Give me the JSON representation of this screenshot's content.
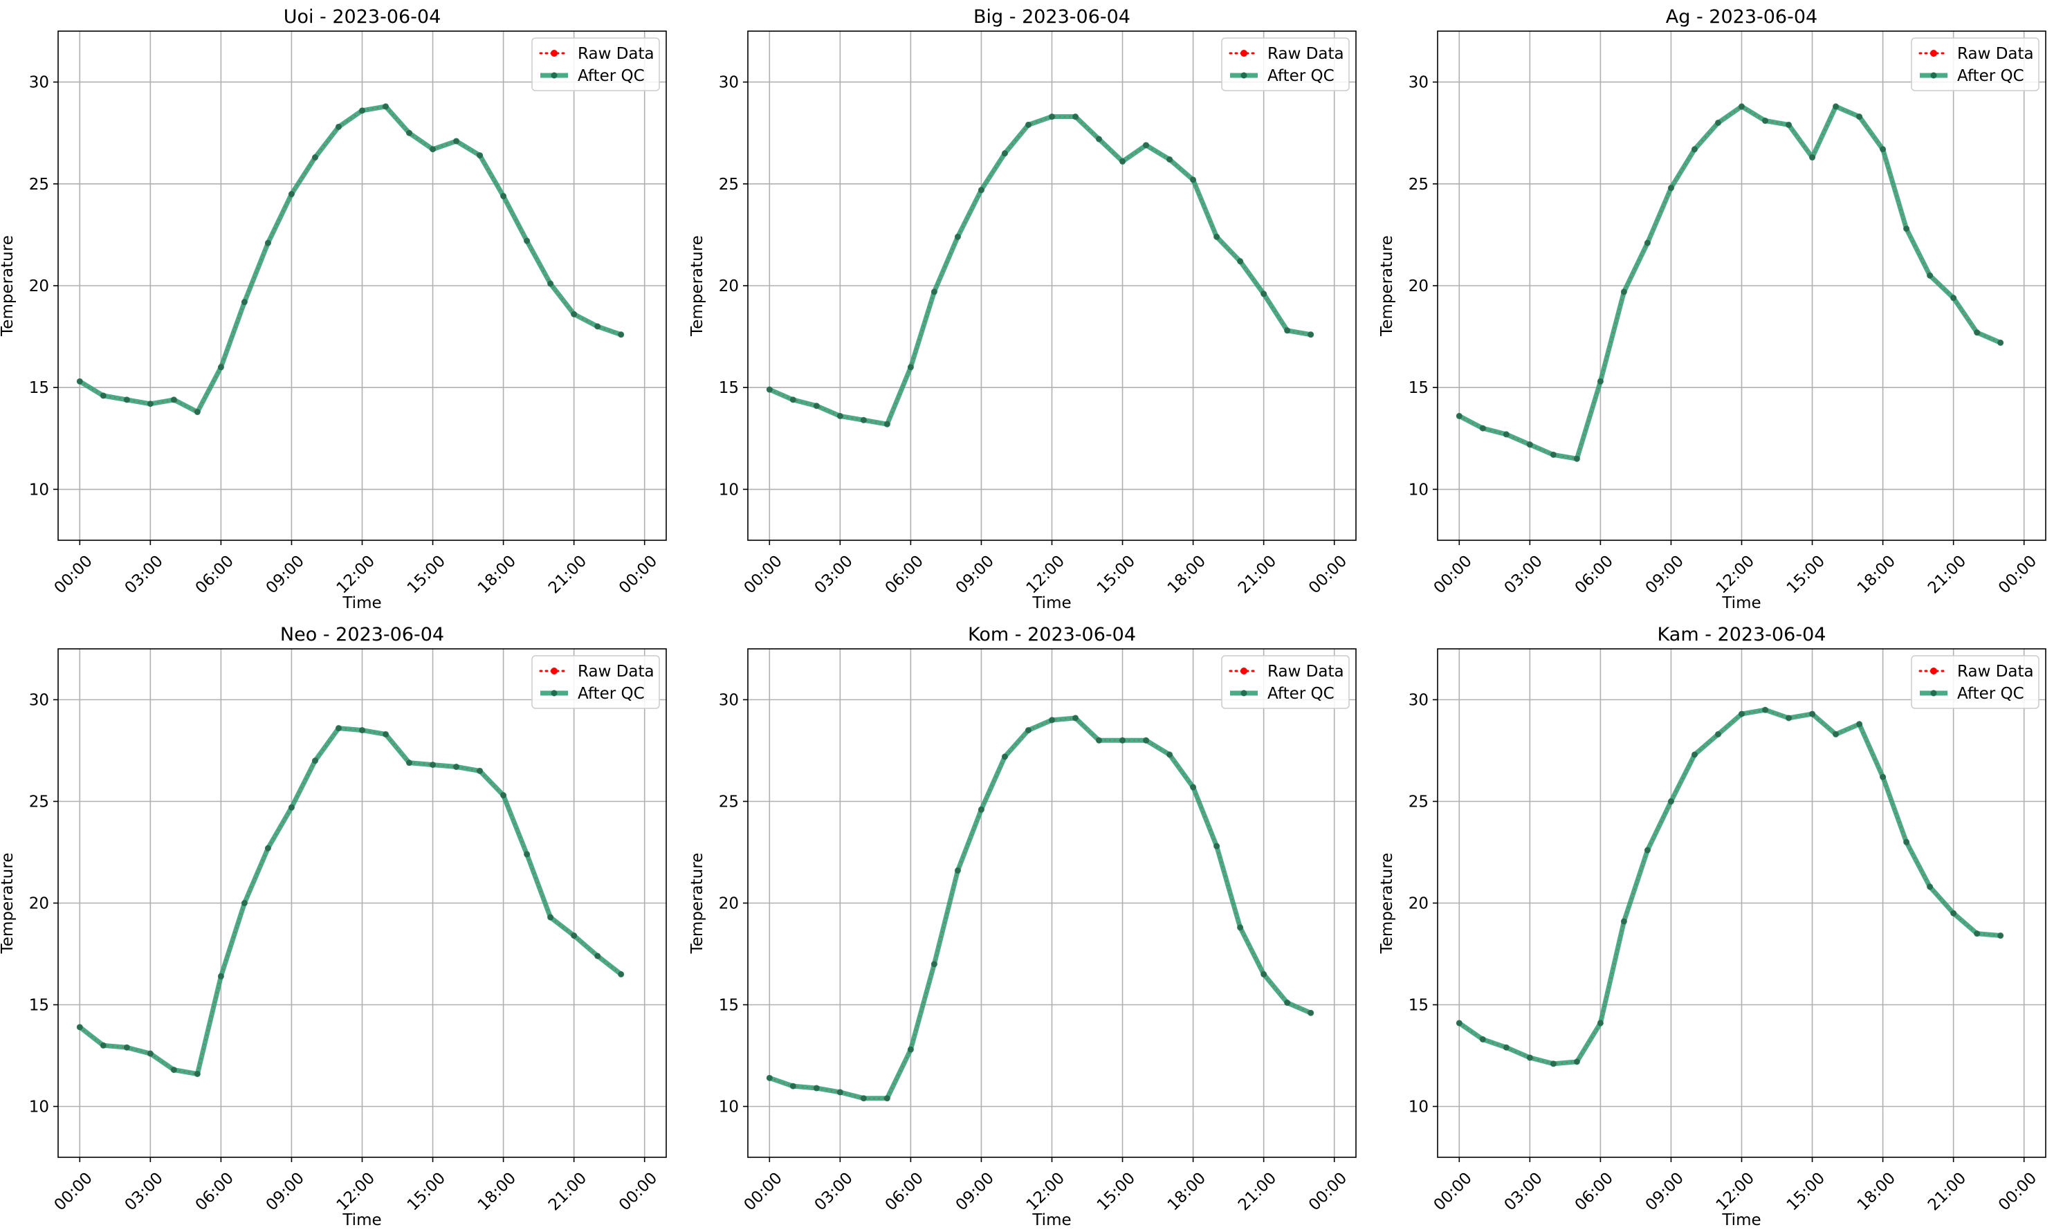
{
  "figure": {
    "legend_labels": {
      "raw": "Raw Data",
      "qc": "After QC"
    },
    "colors": {
      "raw": "#ff0000",
      "qc": "#2a9d72",
      "qc_marker": "#1e6e50",
      "grid": "#b0b0b0",
      "axes": "#000000"
    }
  },
  "chart_data": [
    {
      "type": "line",
      "title": "Uoi - 2023-06-04",
      "xlabel": "Time",
      "ylabel": "Temperature",
      "xlim": [
        -0.92,
        24.92
      ],
      "ylim": [
        7.5,
        32.5
      ],
      "x_ticks": [
        0,
        3,
        6,
        9,
        12,
        15,
        18,
        21,
        24
      ],
      "x_tick_labels": [
        "00:00",
        "03:00",
        "06:00",
        "09:00",
        "12:00",
        "15:00",
        "18:00",
        "21:00",
        "00:00"
      ],
      "y_ticks": [
        10,
        15,
        20,
        25,
        30
      ],
      "grid": true,
      "legend_position": "top-right",
      "x": [
        0,
        1,
        2,
        3,
        4,
        5,
        6,
        7,
        8,
        9,
        10,
        11,
        12,
        13,
        14,
        15,
        16,
        17,
        18,
        19,
        20,
        21,
        22,
        23
      ],
      "series": [
        {
          "name": "Raw Data",
          "values": [
            15.3,
            14.6,
            14.4,
            14.2,
            14.4,
            13.8,
            16.0,
            19.2,
            22.1,
            24.5,
            26.3,
            27.8,
            28.6,
            28.8,
            27.5,
            26.7,
            27.1,
            26.4,
            24.4,
            22.2,
            20.1,
            18.6,
            18.0,
            17.6
          ]
        },
        {
          "name": "After QC",
          "values": [
            15.3,
            14.6,
            14.4,
            14.2,
            14.4,
            13.8,
            16.0,
            19.2,
            22.1,
            24.5,
            26.3,
            27.8,
            28.6,
            28.8,
            27.5,
            26.7,
            27.1,
            26.4,
            24.4,
            22.2,
            20.1,
            18.6,
            18.0,
            17.6
          ]
        }
      ]
    },
    {
      "type": "line",
      "title": "Big - 2023-06-04",
      "xlabel": "Time",
      "ylabel": "Temperature",
      "xlim": [
        -0.92,
        24.92
      ],
      "ylim": [
        7.5,
        32.5
      ],
      "x_ticks": [
        0,
        3,
        6,
        9,
        12,
        15,
        18,
        21,
        24
      ],
      "x_tick_labels": [
        "00:00",
        "03:00",
        "06:00",
        "09:00",
        "12:00",
        "15:00",
        "18:00",
        "21:00",
        "00:00"
      ],
      "y_ticks": [
        10,
        15,
        20,
        25,
        30
      ],
      "grid": true,
      "legend_position": "top-right",
      "x": [
        0,
        1,
        2,
        3,
        4,
        5,
        6,
        7,
        8,
        9,
        10,
        11,
        12,
        13,
        14,
        15,
        16,
        17,
        18,
        19,
        20,
        21,
        22,
        23
      ],
      "series": [
        {
          "name": "Raw Data",
          "values": [
            14.9,
            14.4,
            14.1,
            13.6,
            13.4,
            13.2,
            16.0,
            19.7,
            22.4,
            24.7,
            26.5,
            27.9,
            28.3,
            28.3,
            27.2,
            26.1,
            26.9,
            26.2,
            25.2,
            22.4,
            21.2,
            19.6,
            17.8,
            17.6
          ]
        },
        {
          "name": "After QC",
          "values": [
            14.9,
            14.4,
            14.1,
            13.6,
            13.4,
            13.2,
            16.0,
            19.7,
            22.4,
            24.7,
            26.5,
            27.9,
            28.3,
            28.3,
            27.2,
            26.1,
            26.9,
            26.2,
            25.2,
            22.4,
            21.2,
            19.6,
            17.8,
            17.6
          ]
        }
      ]
    },
    {
      "type": "line",
      "title": "Ag - 2023-06-04",
      "xlabel": "Time",
      "ylabel": "Temperature",
      "xlim": [
        -0.92,
        24.92
      ],
      "ylim": [
        7.5,
        32.5
      ],
      "x_ticks": [
        0,
        3,
        6,
        9,
        12,
        15,
        18,
        21,
        24
      ],
      "x_tick_labels": [
        "00:00",
        "03:00",
        "06:00",
        "09:00",
        "12:00",
        "15:00",
        "18:00",
        "21:00",
        "00:00"
      ],
      "y_ticks": [
        10,
        15,
        20,
        25,
        30
      ],
      "grid": true,
      "legend_position": "top-right",
      "x": [
        0,
        1,
        2,
        3,
        4,
        5,
        6,
        7,
        8,
        9,
        10,
        11,
        12,
        13,
        14,
        15,
        16,
        17,
        18,
        19,
        20,
        21,
        22,
        23
      ],
      "series": [
        {
          "name": "Raw Data",
          "values": [
            13.6,
            13.0,
            12.7,
            12.2,
            11.7,
            11.5,
            15.3,
            19.7,
            22.1,
            24.8,
            26.7,
            28.0,
            28.8,
            28.1,
            27.9,
            26.3,
            28.8,
            28.3,
            26.7,
            22.8,
            20.5,
            19.4,
            17.7,
            17.2
          ]
        },
        {
          "name": "After QC",
          "values": [
            13.6,
            13.0,
            12.7,
            12.2,
            11.7,
            11.5,
            15.3,
            19.7,
            22.1,
            24.8,
            26.7,
            28.0,
            28.8,
            28.1,
            27.9,
            26.3,
            28.8,
            28.3,
            26.7,
            22.8,
            20.5,
            19.4,
            17.7,
            17.2
          ]
        }
      ]
    },
    {
      "type": "line",
      "title": "Neo - 2023-06-04",
      "xlabel": "Time",
      "ylabel": "Temperature",
      "xlim": [
        -0.92,
        24.92
      ],
      "ylim": [
        7.5,
        32.5
      ],
      "x_ticks": [
        0,
        3,
        6,
        9,
        12,
        15,
        18,
        21,
        24
      ],
      "x_tick_labels": [
        "00:00",
        "03:00",
        "06:00",
        "09:00",
        "12:00",
        "15:00",
        "18:00",
        "21:00",
        "00:00"
      ],
      "y_ticks": [
        10,
        15,
        20,
        25,
        30
      ],
      "grid": true,
      "legend_position": "top-right",
      "x": [
        0,
        1,
        2,
        3,
        4,
        5,
        6,
        7,
        8,
        9,
        10,
        11,
        12,
        13,
        14,
        15,
        16,
        17,
        18,
        19,
        20,
        21,
        22,
        23
      ],
      "series": [
        {
          "name": "Raw Data",
          "values": [
            13.9,
            13.0,
            12.9,
            12.6,
            11.8,
            11.6,
            16.4,
            20.0,
            22.7,
            24.7,
            27.0,
            28.6,
            28.5,
            28.3,
            26.9,
            26.8,
            26.7,
            26.5,
            25.3,
            22.4,
            19.3,
            18.4,
            17.4,
            16.5
          ]
        },
        {
          "name": "After QC",
          "values": [
            13.9,
            13.0,
            12.9,
            12.6,
            11.8,
            11.6,
            16.4,
            20.0,
            22.7,
            24.7,
            27.0,
            28.6,
            28.5,
            28.3,
            26.9,
            26.8,
            26.7,
            26.5,
            25.3,
            22.4,
            19.3,
            18.4,
            17.4,
            16.5
          ]
        }
      ]
    },
    {
      "type": "line",
      "title": "Kom - 2023-06-04",
      "xlabel": "Time",
      "ylabel": "Temperature",
      "xlim": [
        -0.92,
        24.92
      ],
      "ylim": [
        7.5,
        32.5
      ],
      "x_ticks": [
        0,
        3,
        6,
        9,
        12,
        15,
        18,
        21,
        24
      ],
      "x_tick_labels": [
        "00:00",
        "03:00",
        "06:00",
        "09:00",
        "12:00",
        "15:00",
        "18:00",
        "21:00",
        "00:00"
      ],
      "y_ticks": [
        10,
        15,
        20,
        25,
        30
      ],
      "grid": true,
      "legend_position": "top-right",
      "x": [
        0,
        1,
        2,
        3,
        4,
        5,
        6,
        7,
        8,
        9,
        10,
        11,
        12,
        13,
        14,
        15,
        16,
        17,
        18,
        19,
        20,
        21,
        22,
        23
      ],
      "series": [
        {
          "name": "Raw Data",
          "values": [
            11.4,
            11.0,
            10.9,
            10.7,
            10.4,
            10.4,
            12.8,
            17.0,
            21.6,
            24.6,
            27.2,
            28.5,
            29.0,
            29.1,
            28.0,
            28.0,
            28.0,
            27.3,
            25.7,
            22.8,
            18.8,
            16.5,
            15.1,
            14.6
          ]
        },
        {
          "name": "After QC",
          "values": [
            11.4,
            11.0,
            10.9,
            10.7,
            10.4,
            10.4,
            12.8,
            17.0,
            21.6,
            24.6,
            27.2,
            28.5,
            29.0,
            29.1,
            28.0,
            28.0,
            28.0,
            27.3,
            25.7,
            22.8,
            18.8,
            16.5,
            15.1,
            14.6
          ]
        }
      ]
    },
    {
      "type": "line",
      "title": "Kam - 2023-06-04",
      "xlabel": "Time",
      "ylabel": "Temperature",
      "xlim": [
        -0.92,
        24.92
      ],
      "ylim": [
        7.5,
        32.5
      ],
      "x_ticks": [
        0,
        3,
        6,
        9,
        12,
        15,
        18,
        21,
        24
      ],
      "x_tick_labels": [
        "00:00",
        "03:00",
        "06:00",
        "09:00",
        "12:00",
        "15:00",
        "18:00",
        "21:00",
        "00:00"
      ],
      "y_ticks": [
        10,
        15,
        20,
        25,
        30
      ],
      "grid": true,
      "legend_position": "top-right",
      "x": [
        0,
        1,
        2,
        3,
        4,
        5,
        6,
        7,
        8,
        9,
        10,
        11,
        12,
        13,
        14,
        15,
        16,
        17,
        18,
        19,
        20,
        21,
        22,
        23
      ],
      "series": [
        {
          "name": "Raw Data",
          "values": [
            14.1,
            13.3,
            12.9,
            12.4,
            12.1,
            12.2,
            14.1,
            19.1,
            22.6,
            25.0,
            27.3,
            28.3,
            29.3,
            29.5,
            29.1,
            29.3,
            28.3,
            28.8,
            26.2,
            23.0,
            20.8,
            19.5,
            18.5,
            18.4
          ]
        },
        {
          "name": "After QC",
          "values": [
            14.1,
            13.3,
            12.9,
            12.4,
            12.1,
            12.2,
            14.1,
            19.1,
            22.6,
            25.0,
            27.3,
            28.3,
            29.3,
            29.5,
            29.1,
            29.3,
            28.3,
            28.8,
            26.2,
            23.0,
            20.8,
            19.5,
            18.5,
            18.4
          ]
        }
      ]
    }
  ]
}
